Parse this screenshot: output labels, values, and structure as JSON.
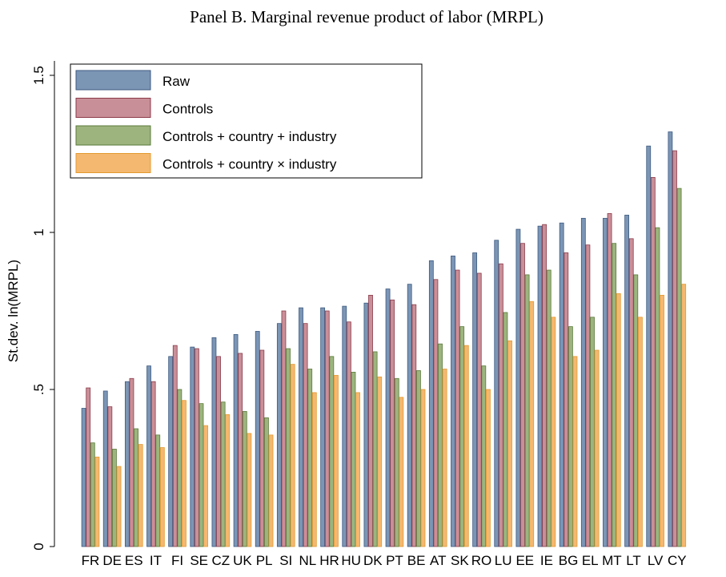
{
  "chart_data": {
    "type": "bar",
    "title": "Panel B. Marginal revenue product of labor (MRPL)",
    "y_label": "St.dev. ln(MRPL)",
    "categories": [
      "FR",
      "DE",
      "ES",
      "IT",
      "FI",
      "SE",
      "CZ",
      "UK",
      "PL",
      "SI",
      "NL",
      "HR",
      "HU",
      "DK",
      "PT",
      "BE",
      "AT",
      "SK",
      "RO",
      "LU",
      "EE",
      "IE",
      "BG",
      "EL",
      "MT",
      "LT",
      "LV",
      "CY"
    ],
    "series": [
      {
        "name": "Raw",
        "color": "#7b95b5",
        "values": [
          0.44,
          0.495,
          0.525,
          0.575,
          0.605,
          0.635,
          0.665,
          0.675,
          0.685,
          0.71,
          0.76,
          0.76,
          0.765,
          0.775,
          0.82,
          0.835,
          0.91,
          0.925,
          0.935,
          0.975,
          1.01,
          1.02,
          1.03,
          1.045,
          1.045,
          1.055,
          1.275,
          1.32
        ]
      },
      {
        "name": "Controls",
        "color": "#c98f98",
        "values": [
          0.505,
          0.445,
          0.535,
          0.525,
          0.64,
          0.63,
          0.605,
          0.615,
          0.625,
          0.75,
          0.71,
          0.75,
          0.715,
          0.8,
          0.785,
          0.77,
          0.85,
          0.88,
          0.87,
          0.9,
          0.965,
          1.025,
          0.935,
          0.96,
          1.06,
          0.98,
          1.175,
          1.26
        ]
      },
      {
        "name": "Controls + country + industry",
        "color": "#9db47f",
        "values": [
          0.33,
          0.31,
          0.375,
          0.355,
          0.5,
          0.455,
          0.46,
          0.43,
          0.41,
          0.63,
          0.565,
          0.605,
          0.555,
          0.62,
          0.535,
          0.56,
          0.645,
          0.7,
          0.575,
          0.745,
          0.865,
          0.88,
          0.7,
          0.73,
          0.965,
          0.865,
          1.015,
          1.14
        ]
      },
      {
        "name": "Controls + country × industry",
        "color": "#f4b870",
        "values": [
          0.285,
          0.255,
          0.325,
          0.315,
          0.465,
          0.385,
          0.42,
          0.36,
          0.355,
          0.58,
          0.49,
          0.545,
          0.49,
          0.54,
          0.475,
          0.5,
          0.565,
          0.64,
          0.5,
          0.655,
          0.78,
          0.73,
          0.605,
          0.625,
          0.805,
          0.73,
          0.8,
          0.835
        ]
      }
    ],
    "ylim": [
      0,
      1.5
    ],
    "yticks": [
      0,
      {
        "value": 0.5,
        "label": ".5"
      },
      1,
      1.5
    ],
    "grid": false,
    "legend": "top-left"
  }
}
